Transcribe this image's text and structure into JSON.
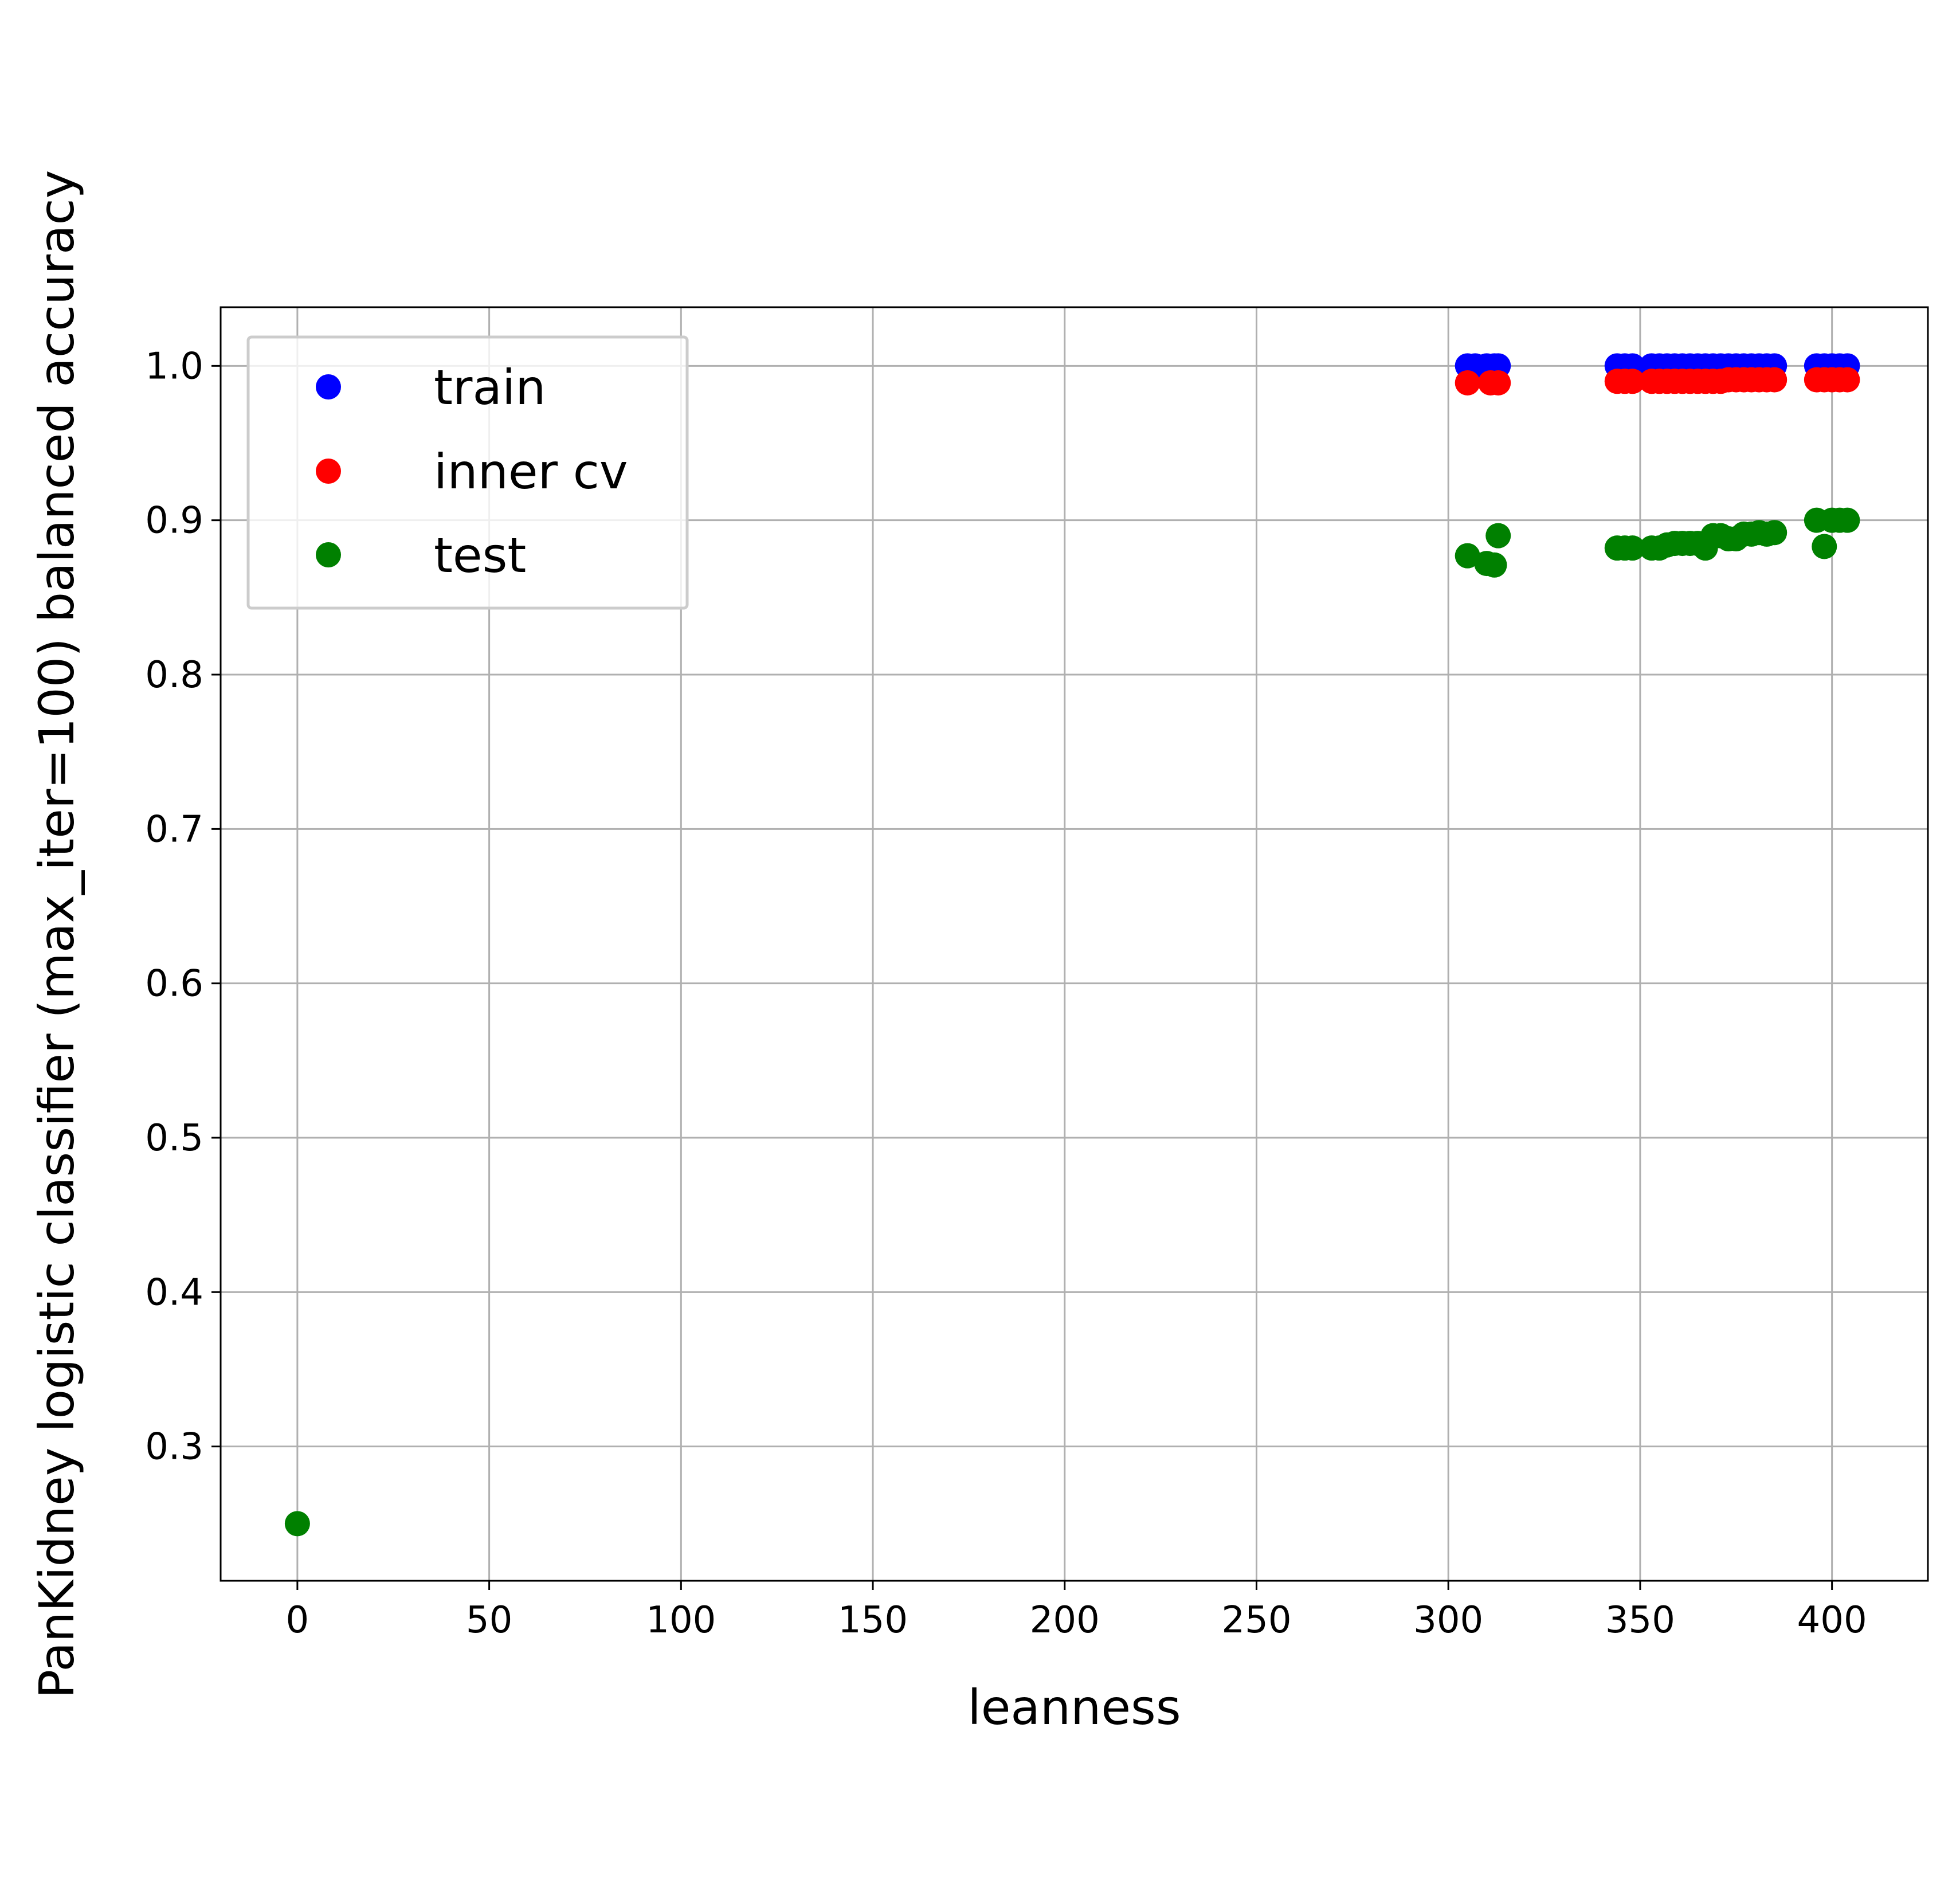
{
  "colors": {
    "train": "#0000ff",
    "inner_cv": "#ff0000",
    "test": "#008000",
    "grid": "#b0b0b0",
    "frame": "#000000",
    "legend_border": "#cccccc"
  },
  "chart_data": {
    "type": "scatter",
    "title": "",
    "xlabel": "leanness",
    "ylabel": "PanKidney logistic classifier (max_iter=100) balanced accuracy",
    "xlim": [
      -20,
      425
    ],
    "ylim": [
      0.213,
      1.038
    ],
    "xticks": [
      0,
      50,
      100,
      150,
      200,
      250,
      300,
      350,
      400
    ],
    "xtick_labels": [
      "0",
      "50",
      "100",
      "150",
      "200",
      "250",
      "300",
      "350",
      "400"
    ],
    "yticks": [
      0.3,
      0.4,
      0.5,
      0.6,
      0.7,
      0.8,
      0.9,
      1.0
    ],
    "ytick_labels": [
      "0.3",
      "0.4",
      "0.5",
      "0.6",
      "0.7",
      "0.8",
      "0.9",
      "1.0"
    ],
    "grid": true,
    "legend_position": "upper-left",
    "series": [
      {
        "name": "train",
        "color_key": "train",
        "x": [
          305,
          307,
          310,
          312,
          313,
          344,
          346,
          348,
          353,
          355,
          357,
          359,
          361,
          363,
          365,
          367,
          369,
          371,
          373,
          375,
          377,
          379,
          381,
          383,
          385,
          396,
          398,
          400,
          402,
          404
        ],
        "y": [
          1.0,
          1.0,
          1.0,
          1.0,
          1.0,
          1.0,
          1.0,
          1.0,
          1.0,
          1.0,
          1.0,
          1.0,
          1.0,
          1.0,
          1.0,
          1.0,
          1.0,
          1.0,
          1.0,
          1.0,
          1.0,
          1.0,
          1.0,
          1.0,
          1.0,
          1.0,
          1.0,
          1.0,
          1.0,
          1.0
        ]
      },
      {
        "name": "inner cv",
        "color_key": "inner_cv",
        "x": [
          305,
          311,
          313,
          344,
          346,
          348,
          353,
          355,
          357,
          359,
          361,
          363,
          365,
          367,
          369,
          371,
          373,
          375,
          377,
          379,
          381,
          383,
          385,
          396,
          398,
          400,
          402,
          404
        ],
        "y": [
          0.989,
          0.989,
          0.989,
          0.99,
          0.99,
          0.99,
          0.99,
          0.99,
          0.99,
          0.99,
          0.99,
          0.99,
          0.99,
          0.99,
          0.99,
          0.99,
          0.991,
          0.991,
          0.991,
          0.991,
          0.991,
          0.991,
          0.991,
          0.991,
          0.991,
          0.991,
          0.991,
          0.991
        ]
      },
      {
        "name": "test",
        "color_key": "test",
        "x": [
          0,
          305,
          310,
          312,
          313,
          344,
          346,
          348,
          353,
          355,
          357,
          359,
          361,
          363,
          365,
          367,
          369,
          371,
          373,
          375,
          377,
          379,
          381,
          383,
          385,
          396,
          398,
          400,
          402,
          404
        ],
        "y": [
          0.25,
          0.877,
          0.872,
          0.871,
          0.89,
          0.882,
          0.882,
          0.882,
          0.882,
          0.882,
          0.884,
          0.885,
          0.885,
          0.885,
          0.885,
          0.882,
          0.89,
          0.89,
          0.888,
          0.888,
          0.891,
          0.891,
          0.892,
          0.891,
          0.892,
          0.9,
          0.883,
          0.9,
          0.9,
          0.9
        ]
      }
    ]
  }
}
